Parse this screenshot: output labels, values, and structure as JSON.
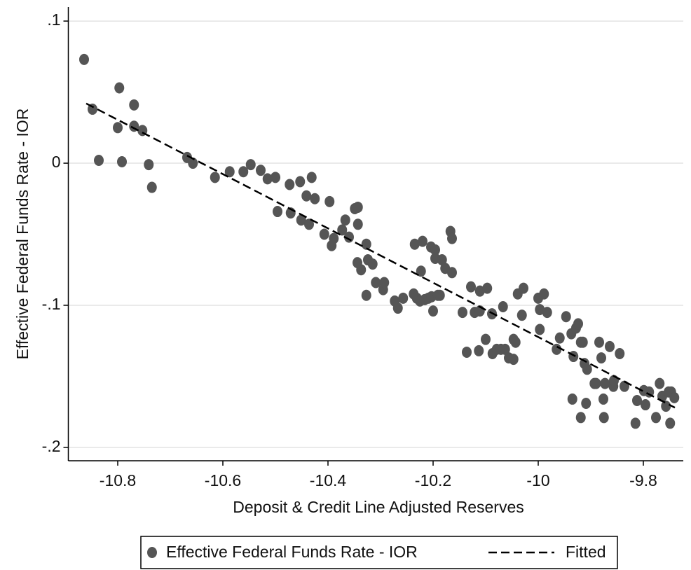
{
  "chart_data": {
    "type": "scatter",
    "xlabel": "Deposit & Credit Line Adjusted Reserves",
    "ylabel": "Effective Federal Funds Rate - IOR",
    "xlim": [
      -10.894,
      -9.724
    ],
    "ylim": [
      -0.2094,
      0.1099
    ],
    "xticks": [
      -10.8,
      -10.6,
      -10.4,
      -10.2,
      -10,
      -9.8
    ],
    "yticks": [
      {
        "value": 0.1,
        "label": ".1"
      },
      0,
      {
        "value": -0.1,
        "label": "-.1"
      },
      {
        "value": -0.2,
        "label": "-.2"
      }
    ],
    "grid": true,
    "series": [
      {
        "name": "Effective Federal Funds Rate - IOR",
        "type": "scatter",
        "color": "#555555",
        "x": [
          -10.864,
          -10.848,
          -10.836,
          -10.797,
          -10.8,
          -10.792,
          -10.769,
          -10.769,
          -10.753,
          -10.741,
          -10.735,
          -10.668,
          -10.657,
          -10.615,
          -10.587,
          -10.561,
          -10.547,
          -10.528,
          -10.515,
          -10.5,
          -10.496,
          -10.473,
          -10.471,
          -10.453,
          -10.451,
          -10.441,
          -10.436,
          -10.431,
          -10.425,
          -10.407,
          -10.397,
          -10.393,
          -10.389,
          -10.373,
          -10.367,
          -10.36,
          -10.349,
          -10.343,
          -10.343,
          -10.344,
          -10.337,
          -10.327,
          -10.324,
          -10.327,
          -10.315,
          -10.309,
          -10.295,
          -10.293,
          -10.273,
          -10.267,
          -10.257,
          -10.237,
          -10.235,
          -10.231,
          -10.225,
          -10.22,
          -10.223,
          -10.216,
          -10.209,
          -10.204,
          -10.203,
          -10.2,
          -10.196,
          -10.196,
          -10.191,
          -10.187,
          -10.183,
          -10.177,
          -10.167,
          -10.164,
          -10.164,
          -10.144,
          -10.136,
          -10.128,
          -10.121,
          -10.113,
          -10.111,
          -10.111,
          -10.097,
          -10.1,
          -10.088,
          -10.087,
          -10.079,
          -10.071,
          -10.063,
          -10.067,
          -10.056,
          -10.047,
          -10.047,
          -10.043,
          -10.039,
          -10.031,
          -10.028,
          -10.0,
          -9.997,
          -9.997,
          -9.989,
          -9.983,
          -9.965,
          -9.959,
          -9.947,
          -9.937,
          -9.935,
          -9.933,
          -9.928,
          -9.924,
          -9.919,
          -9.919,
          -9.915,
          -9.912,
          -9.909,
          -9.907,
          -9.893,
          -9.884,
          -9.89,
          -9.88,
          -9.876,
          -9.875,
          -9.873,
          -9.864,
          -9.857,
          -9.856,
          -9.845,
          -9.836,
          -9.815,
          -9.812,
          -9.799,
          -9.796,
          -9.789,
          -9.776,
          -9.769,
          -9.764,
          -9.757,
          -9.749,
          -9.752,
          -9.747,
          -9.741
        ],
        "values": [
          0.073,
          0.038,
          0.002,
          0.053,
          0.025,
          0.001,
          0.041,
          0.026,
          0.023,
          -0.001,
          -0.017,
          0.004,
          0.0,
          -0.01,
          -0.006,
          -0.006,
          -0.001,
          -0.005,
          -0.011,
          -0.01,
          -0.034,
          -0.015,
          -0.035,
          -0.013,
          -0.04,
          -0.023,
          -0.043,
          -0.01,
          -0.025,
          -0.05,
          -0.027,
          -0.058,
          -0.053,
          -0.047,
          -0.04,
          -0.052,
          -0.032,
          -0.031,
          -0.043,
          -0.07,
          -0.075,
          -0.057,
          -0.068,
          -0.093,
          -0.071,
          -0.084,
          -0.089,
          -0.084,
          -0.097,
          -0.102,
          -0.095,
          -0.092,
          -0.057,
          -0.095,
          -0.097,
          -0.055,
          -0.076,
          -0.096,
          -0.095,
          -0.059,
          -0.094,
          -0.104,
          -0.061,
          -0.067,
          -0.093,
          -0.093,
          -0.068,
          -0.074,
          -0.048,
          -0.053,
          -0.077,
          -0.105,
          -0.133,
          -0.087,
          -0.105,
          -0.132,
          -0.09,
          -0.104,
          -0.088,
          -0.124,
          -0.106,
          -0.134,
          -0.131,
          -0.131,
          -0.131,
          -0.101,
          -0.137,
          -0.138,
          -0.124,
          -0.126,
          -0.092,
          -0.107,
          -0.088,
          -0.095,
          -0.103,
          -0.117,
          -0.092,
          -0.105,
          -0.131,
          -0.123,
          -0.108,
          -0.12,
          -0.166,
          -0.136,
          -0.116,
          -0.113,
          -0.126,
          -0.179,
          -0.126,
          -0.141,
          -0.169,
          -0.145,
          -0.155,
          -0.126,
          -0.155,
          -0.137,
          -0.166,
          -0.179,
          -0.155,
          -0.129,
          -0.157,
          -0.153,
          -0.134,
          -0.157,
          -0.183,
          -0.167,
          -0.16,
          -0.17,
          -0.161,
          -0.179,
          -0.155,
          -0.164,
          -0.171,
          -0.183,
          -0.161,
          -0.161,
          -0.165
        ]
      },
      {
        "name": "Fitted",
        "type": "line",
        "color": "#000000",
        "dashed": true,
        "x": [
          -10.86,
          -9.74
        ],
        "values": [
          0.042,
          -0.172
        ]
      }
    ]
  }
}
